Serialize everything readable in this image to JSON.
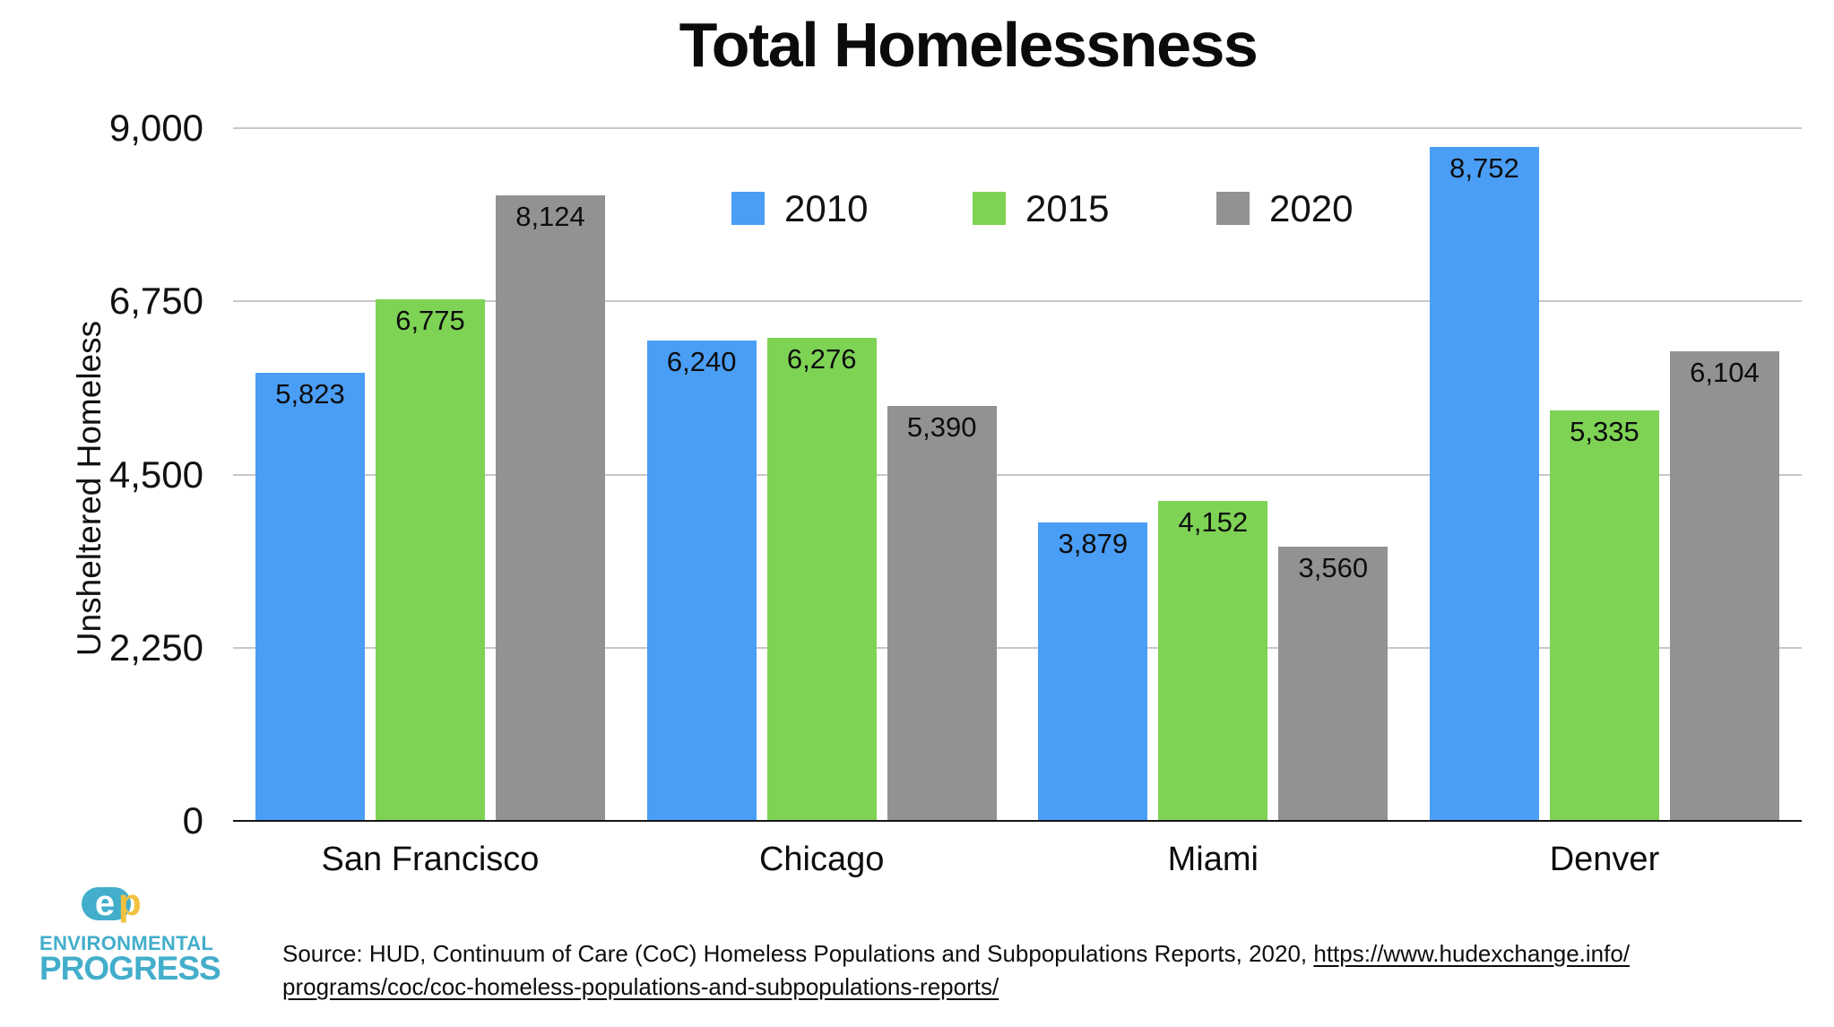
{
  "title": "Total Homelessness",
  "chart_data": {
    "type": "bar",
    "title": "Total Homelessness",
    "categories": [
      "San Francisco",
      "Chicago",
      "Miami",
      "Denver"
    ],
    "series": [
      {
        "name": "2010",
        "color": "#4A9EF5",
        "values": [
          5823,
          6240,
          3879,
          8752
        ]
      },
      {
        "name": "2015",
        "color": "#7ED355",
        "values": [
          6775,
          6276,
          4152,
          5335
        ]
      },
      {
        "name": "2020",
        "color": "#929292",
        "values": [
          8124,
          5390,
          3560,
          6104
        ]
      }
    ],
    "xlabel": "",
    "ylabel": "Unsheltered Homeless",
    "ylim": [
      0,
      9000
    ],
    "yticks": [
      0,
      2250,
      4500,
      6750,
      9000
    ],
    "ytick_labels": [
      "0",
      "2,250",
      "4,500",
      "6,750",
      "9,000"
    ],
    "grid": true,
    "gridline_color": "#C8C8C8",
    "legend_position": "top-center",
    "value_labels": true
  },
  "logo": {
    "mark_e": "e",
    "mark_p": "p",
    "line1": "ENVIRONMENTAL",
    "line2": "PROGRESS",
    "teal": "#42AECB",
    "yellow": "#F1C13F"
  },
  "source": {
    "prefix": "Source: HUD, Continuum of Care (CoC) Homeless Populations and Subpopulations Reports, 2020, ",
    "link_line1": "https://www.hudexchange.info/",
    "link_line2": "programs/coc/coc-homeless-populations-and-subpopulations-reports/"
  }
}
